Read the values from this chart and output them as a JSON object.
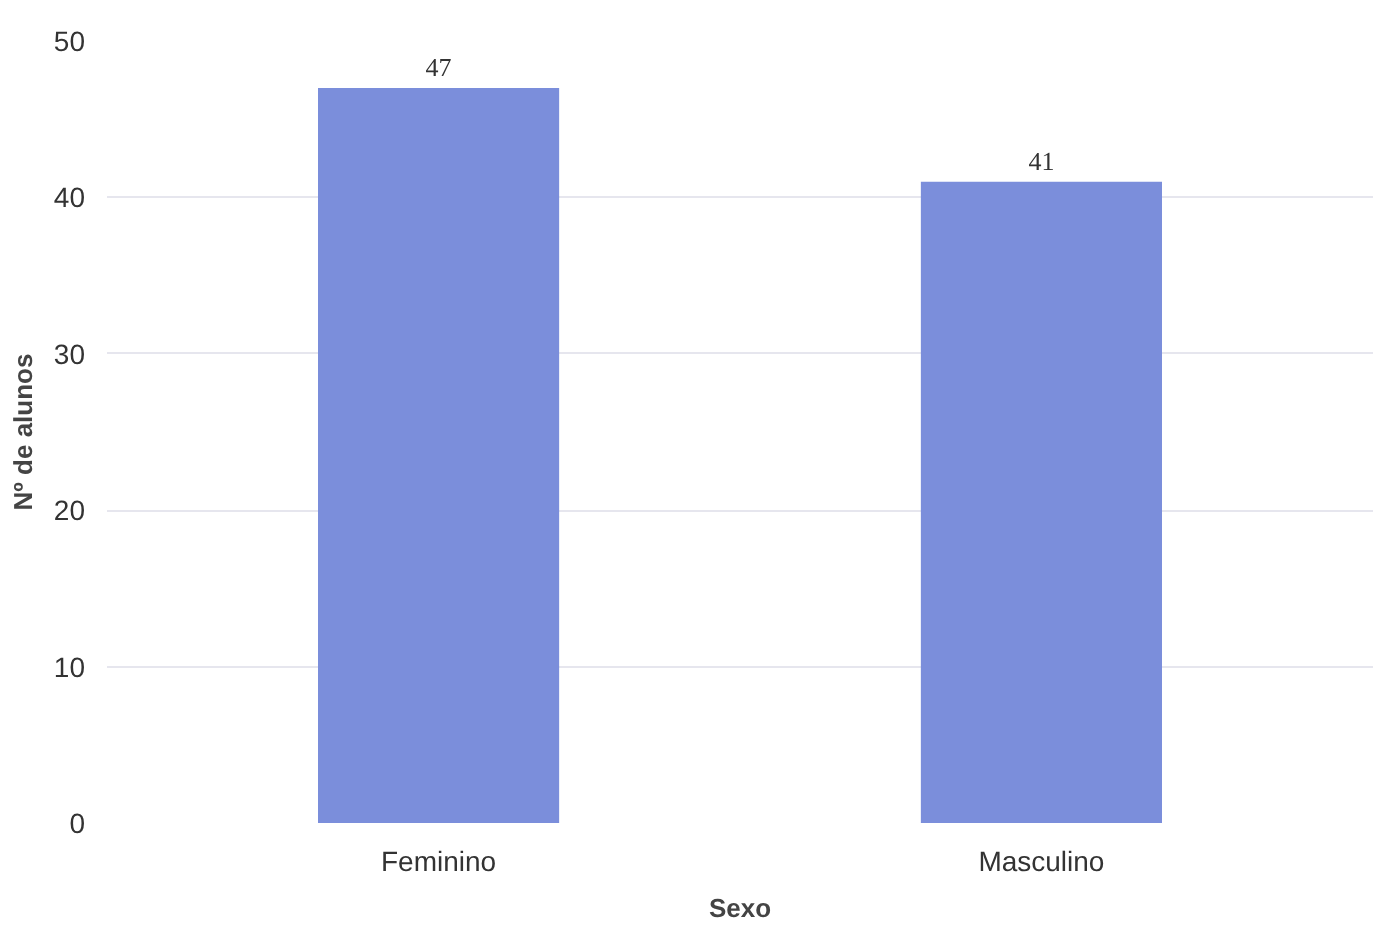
{
  "chart_data": {
    "type": "bar",
    "xlabel": "Sexo",
    "ylabel": "Nº de alunos",
    "categories": [
      "Feminino",
      "Masculino"
    ],
    "values": [
      47,
      41
    ],
    "color": "#7b8edb",
    "ylim": [
      0,
      50
    ],
    "yticks": [
      0,
      10,
      20,
      30,
      40,
      50
    ],
    "grid": "y",
    "data_labels": true
  }
}
